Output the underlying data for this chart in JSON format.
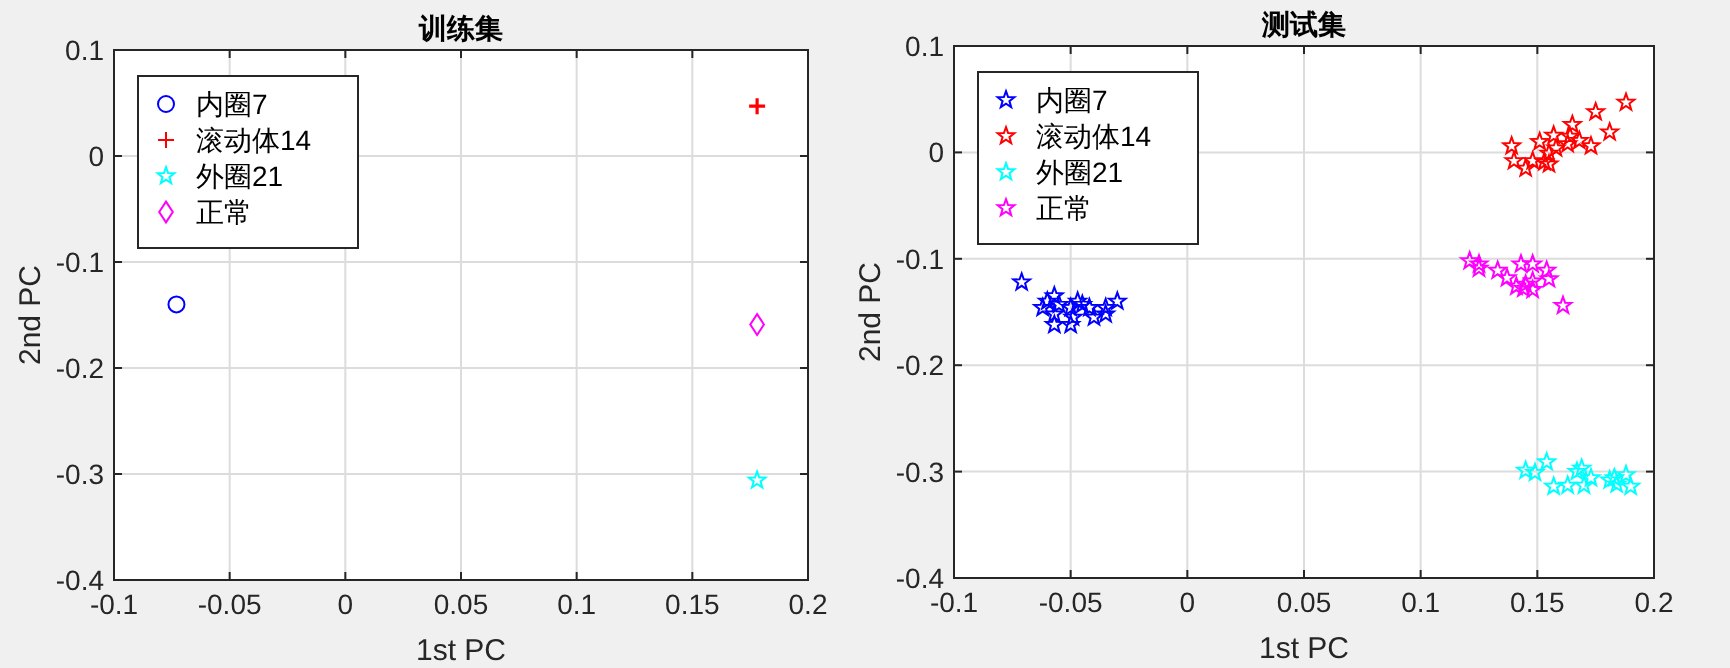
{
  "chart_data": [
    {
      "type": "scatter",
      "title": "训练集",
      "xlabel": "1st PC",
      "ylabel": "2nd PC",
      "xlim": [
        -0.1,
        0.2
      ],
      "ylim": [
        -0.4,
        0.1
      ],
      "xticks": [
        -0.1,
        -0.05,
        0,
        0.05,
        0.1,
        0.15,
        0.2
      ],
      "yticks": [
        -0.4,
        -0.3,
        -0.2,
        -0.1,
        0,
        0.1
      ],
      "grid": true,
      "legend": "top left",
      "series": [
        {
          "name": "内圈7",
          "color": "#0000ff",
          "marker": "circle",
          "x": [
            -0.073
          ],
          "values": [
            -0.14
          ]
        },
        {
          "name": "滚动体14",
          "color": "#ff0000",
          "marker": "cross",
          "x": [
            0.178
          ],
          "values": [
            0.047
          ]
        },
        {
          "name": "外圈21",
          "color": "#00ffff",
          "marker": "star",
          "x": [
            0.178
          ],
          "values": [
            -0.306
          ]
        },
        {
          "name": "正常",
          "color": "#ff00ff",
          "marker": "diamond",
          "x": [
            0.178
          ],
          "values": [
            -0.159
          ]
        }
      ]
    },
    {
      "type": "scatter",
      "title": "测试集",
      "xlabel": "1st PC",
      "ylabel": "2nd PC",
      "xlim": [
        -0.1,
        0.2
      ],
      "ylim": [
        -0.4,
        0.1
      ],
      "xticks": [
        -0.1,
        -0.05,
        0,
        0.05,
        0.1,
        0.15,
        0.2
      ],
      "yticks": [
        -0.4,
        -0.3,
        -0.2,
        -0.1,
        0,
        0.1
      ],
      "grid": true,
      "legend": "top left",
      "series": [
        {
          "name": "内圈7",
          "color": "#0000ff",
          "marker": "star",
          "x": [
            -0.071,
            -0.06,
            -0.057,
            -0.062,
            -0.057,
            -0.057,
            -0.05,
            -0.05,
            -0.047,
            -0.045,
            -0.042,
            -0.04,
            -0.035,
            -0.03,
            -0.035,
            -0.049,
            -0.055
          ],
          "values": [
            -0.122,
            -0.14,
            -0.135,
            -0.146,
            -0.152,
            -0.162,
            -0.162,
            -0.146,
            -0.14,
            -0.143,
            -0.146,
            -0.155,
            -0.152,
            -0.14,
            -0.146,
            -0.155,
            -0.143
          ]
        },
        {
          "name": "滚动体14",
          "color": "#ff0000",
          "marker": "star",
          "x": [
            0.188,
            0.175,
            0.181,
            0.165,
            0.157,
            0.151,
            0.139,
            0.14,
            0.145,
            0.148,
            0.153,
            0.155,
            0.158,
            0.163,
            0.168,
            0.173,
            0.155,
            0.164
          ],
          "values": [
            0.047,
            0.038,
            0.019,
            0.026,
            0.016,
            0.01,
            0.006,
            -0.008,
            -0.015,
            -0.008,
            -0.009,
            -0.011,
            0.004,
            0.008,
            0.011,
            0.006,
            -0.001,
            0.015
          ]
        },
        {
          "name": "外圈21",
          "color": "#00ffff",
          "marker": "star",
          "x": [
            0.145,
            0.149,
            0.154,
            0.157,
            0.163,
            0.167,
            0.169,
            0.17,
            0.173,
            0.181,
            0.183,
            0.188,
            0.19,
            0.184
          ],
          "values": [
            -0.299,
            -0.301,
            -0.291,
            -0.314,
            -0.313,
            -0.3,
            -0.297,
            -0.313,
            -0.306,
            -0.308,
            -0.306,
            -0.303,
            -0.314,
            -0.312
          ]
        },
        {
          "name": "正常",
          "color": "#ff00ff",
          "marker": "star",
          "x": [
            0.121,
            0.125,
            0.125,
            0.133,
            0.137,
            0.143,
            0.148,
            0.154,
            0.155,
            0.148,
            0.145,
            0.141,
            0.148,
            0.144,
            0.161
          ],
          "values": [
            -0.102,
            -0.105,
            -0.109,
            -0.111,
            -0.118,
            -0.105,
            -0.105,
            -0.111,
            -0.119,
            -0.121,
            -0.124,
            -0.126,
            -0.129,
            -0.128,
            -0.144
          ]
        }
      ]
    }
  ]
}
